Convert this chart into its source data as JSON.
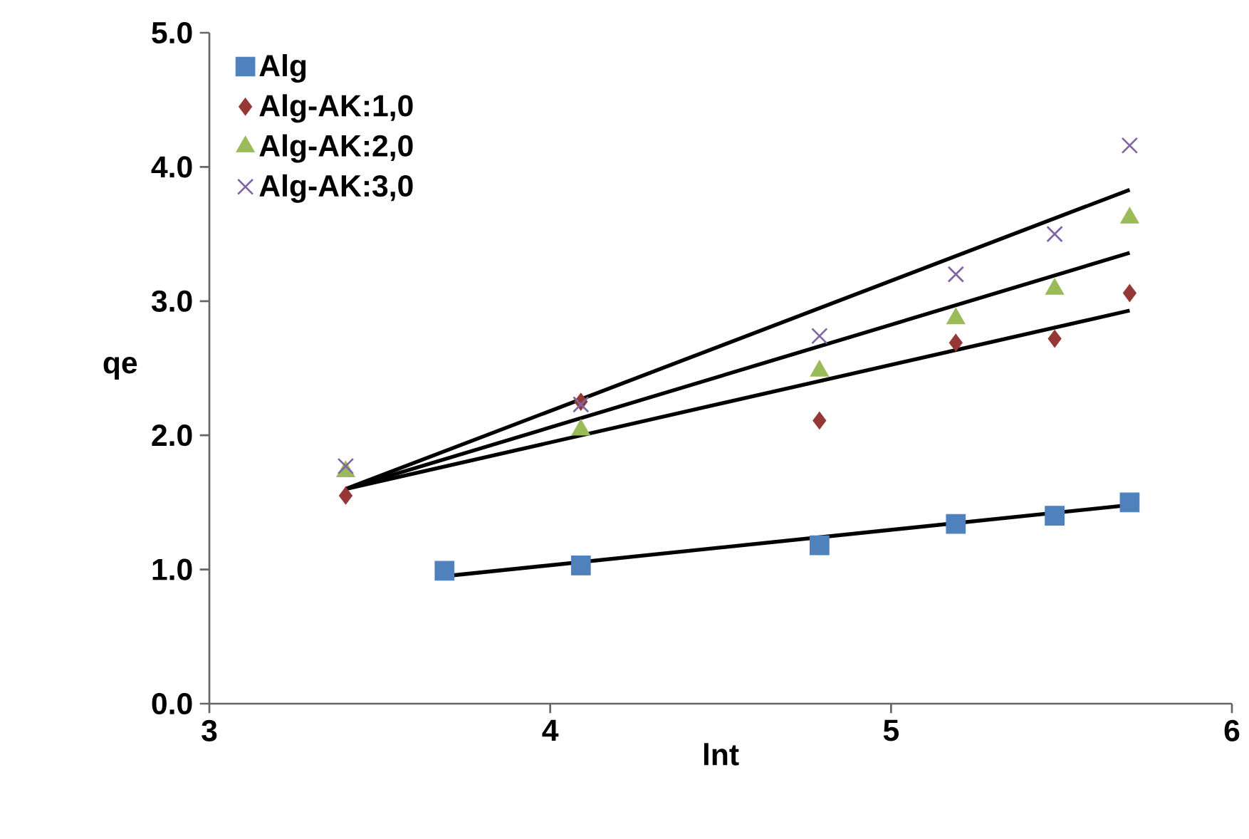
{
  "chart_data": {
    "type": "scatter",
    "xlabel": "lnt",
    "ylabel": "qe",
    "xlim": [
      3,
      6
    ],
    "ylim": [
      0,
      5
    ],
    "xticks": [
      3,
      4,
      5,
      6
    ],
    "yticks": [
      {
        "value": 0,
        "label": "0.0"
      },
      {
        "value": 1,
        "label": "1.0"
      },
      {
        "value": 2,
        "label": "2.0"
      },
      {
        "value": 3,
        "label": "3.0"
      },
      {
        "value": 4,
        "label": "4.0"
      },
      {
        "value": 5,
        "label": "5.0"
      }
    ],
    "grid": false,
    "legend": "top left",
    "series": [
      {
        "name": "Alg",
        "color": "#4f81bd",
        "marker": "square",
        "x": [
          3.69,
          4.09,
          4.79,
          5.19,
          5.48,
          5.7
        ],
        "values": [
          0.99,
          1.03,
          1.18,
          1.34,
          1.4,
          1.5
        ]
      },
      {
        "name": "Alg-AK:1,0",
        "color": "#953735",
        "marker": "diamond",
        "x": [
          3.4,
          4.09,
          4.79,
          5.19,
          5.48,
          5.7
        ],
        "values": [
          1.55,
          2.25,
          2.11,
          2.69,
          2.72,
          3.06
        ]
      },
      {
        "name": "Alg-AK:2,0",
        "color": "#9bbb59",
        "marker": "triangle",
        "x": [
          3.4,
          4.09,
          4.79,
          5.19,
          5.48,
          5.7
        ],
        "values": [
          1.73,
          2.04,
          2.48,
          2.87,
          3.09,
          3.62
        ]
      },
      {
        "name": "Alg-AK:3,0",
        "color": "#8064a2",
        "marker": "cross",
        "x": [
          3.4,
          4.09,
          4.79,
          5.19,
          5.48,
          5.7
        ],
        "values": [
          1.77,
          2.23,
          2.74,
          3.2,
          3.5,
          4.16
        ]
      },
      {
        "type": "line",
        "color": "#000000",
        "marker": "none",
        "x": [
          3.69,
          5.7
        ],
        "values": [
          0.95,
          1.48
        ]
      },
      {
        "type": "line",
        "color": "#000000",
        "marker": "none",
        "x": [
          3.4,
          5.7
        ],
        "values": [
          1.6,
          2.93
        ]
      },
      {
        "type": "line",
        "color": "#000000",
        "marker": "none",
        "x": [
          3.4,
          5.7
        ],
        "values": [
          1.6,
          3.36
        ]
      },
      {
        "type": "line",
        "color": "#000000",
        "marker": "none",
        "x": [
          3.4,
          5.7
        ],
        "values": [
          1.6,
          3.83
        ]
      }
    ]
  }
}
